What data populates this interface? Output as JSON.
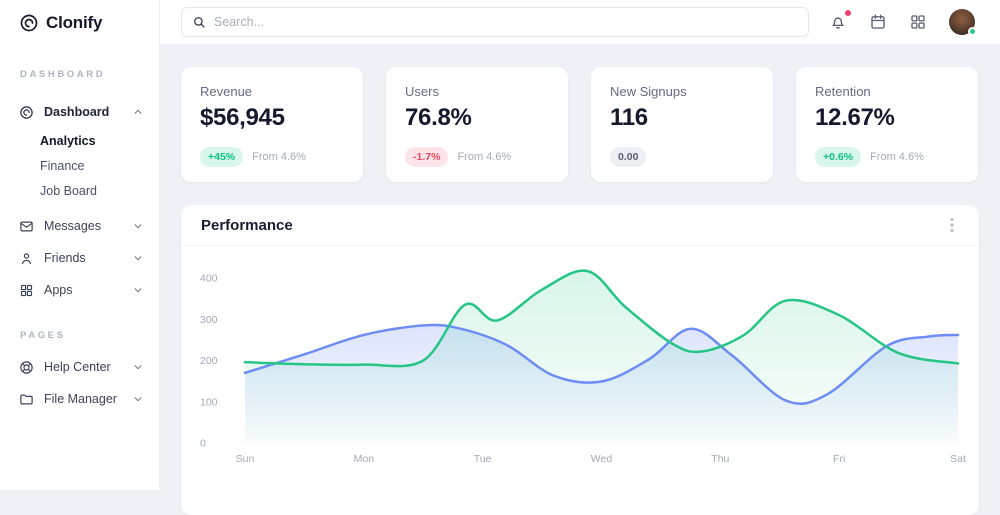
{
  "sidebar": {
    "logo": "Clonify",
    "sections": [
      {
        "label": "DASHBOARD",
        "items": [
          {
            "label": "Dashboard",
            "icon": "dashboard-icon",
            "chevron": "up",
            "children": [
              {
                "label": "Analytics",
                "active": true
              },
              {
                "label": "Finance",
                "active": false
              },
              {
                "label": "Job Board",
                "active": false
              }
            ]
          },
          {
            "label": "Messages",
            "icon": "mail-icon",
            "chevron": "down"
          },
          {
            "label": "Friends",
            "icon": "user-icon",
            "chevron": "down"
          },
          {
            "label": "Apps",
            "icon": "grid-icon",
            "chevron": "down"
          }
        ]
      },
      {
        "label": "PAGES",
        "items": [
          {
            "label": "Help Center",
            "icon": "lifebuoy-icon",
            "chevron": "down"
          },
          {
            "label": "File Manager",
            "icon": "folder-icon",
            "chevron": "down"
          }
        ]
      }
    ]
  },
  "header": {
    "search_placeholder": "Search...",
    "has_notification_dot": true,
    "avatar_status": "online"
  },
  "stats": [
    {
      "title": "Revenue",
      "value": "$56,945",
      "badge": "+45%",
      "badge_type": "positive",
      "note": "From 4.6%"
    },
    {
      "title": "Users",
      "value": "76.8%",
      "badge": "-1.7%",
      "badge_type": "negative",
      "note": "From 4.6%"
    },
    {
      "title": "New Signups",
      "value": "116",
      "badge": "0.00",
      "badge_type": "neutral",
      "note": ""
    },
    {
      "title": "Retention",
      "value": "12.67%",
      "badge": "+0.6%",
      "badge_type": "positive",
      "note": "From 4.6%"
    }
  ],
  "performance": {
    "title": "Performance"
  },
  "chart_data": {
    "type": "area",
    "title": "Performance",
    "categories": [
      "Sun",
      "Mon",
      "Tue",
      "Wed",
      "Thu",
      "Fri",
      "Sat"
    ],
    "y_ticks": [
      0,
      100,
      200,
      300,
      400
    ],
    "ylim": [
      0,
      400
    ],
    "grid": false,
    "legend": "none",
    "series": [
      {
        "name": "blue-series",
        "color": "#6d8df5",
        "area_opacity_top": 0.34,
        "points": [
          [
            0,
            170
          ],
          [
            0.5,
            215
          ],
          [
            1,
            262
          ],
          [
            1.5,
            285
          ],
          [
            1.8,
            278
          ],
          [
            2.2,
            238
          ],
          [
            2.6,
            163
          ],
          [
            3,
            149
          ],
          [
            3.4,
            203
          ],
          [
            3.75,
            277
          ],
          [
            4.1,
            212
          ],
          [
            4.55,
            103
          ],
          [
            4.9,
            118
          ],
          [
            5.4,
            235
          ],
          [
            5.75,
            258
          ],
          [
            6,
            262
          ]
        ]
      },
      {
        "name": "green-series",
        "color": "#25c685",
        "area_opacity_top": 0.18,
        "points": [
          [
            0,
            196
          ],
          [
            0.5,
            191
          ],
          [
            1,
            190
          ],
          [
            1.5,
            200
          ],
          [
            1.85,
            335
          ],
          [
            2.12,
            297
          ],
          [
            2.5,
            372
          ],
          [
            2.88,
            417
          ],
          [
            3.2,
            330
          ],
          [
            3.6,
            240
          ],
          [
            3.85,
            222
          ],
          [
            4.2,
            262
          ],
          [
            4.55,
            345
          ],
          [
            5,
            310
          ],
          [
            5.5,
            218
          ],
          [
            6,
            193
          ]
        ]
      }
    ],
    "axis_label_color": "#a4a8b6"
  },
  "colors": {
    "accent_green": "#25c685",
    "accent_blue": "#6d8df5",
    "positive_badge_bg": "#d9f6ea",
    "positive_badge_text": "#0bc287",
    "negative_badge_bg": "#fce4e8",
    "negative_badge_text": "#ef4760",
    "notification_dot": "#f1416c",
    "status_dot": "#2bc98a",
    "main_bg": "#eff1f6"
  }
}
